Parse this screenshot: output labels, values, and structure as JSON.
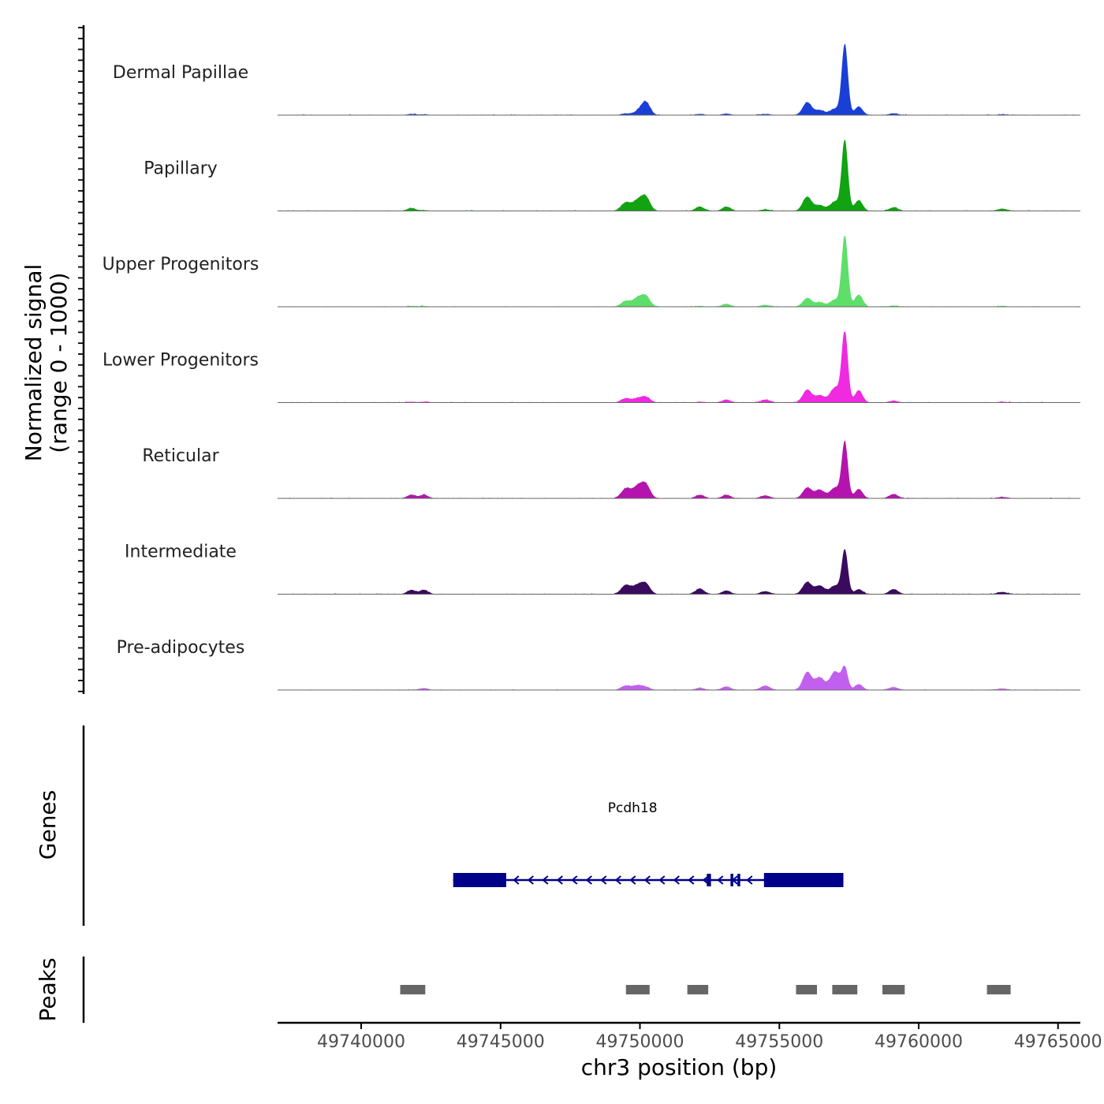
{
  "chart_data": {
    "type": "area",
    "title": "",
    "chromosome": "chr3",
    "xlabel": "chr3 position (bp)",
    "ylabel_line1": "Normalized signal",
    "ylabel_line2": "(range 0 - 1000)",
    "xlim": [
      49737000,
      49765800
    ],
    "xticks": [
      49740000,
      49745000,
      49750000,
      49755000,
      49760000,
      49765000
    ],
    "xtick_labels": [
      "49740000",
      "49745000",
      "49750000",
      "49755000",
      "49760000",
      "49765000"
    ],
    "ylim": [
      0,
      1000
    ],
    "peak_centers": [
      {
        "pos": 49741800,
        "w": 150
      },
      {
        "pos": 49742250,
        "w": 150
      },
      {
        "pos": 49749500,
        "w": 170
      },
      {
        "pos": 49749900,
        "w": 160
      },
      {
        "pos": 49750200,
        "w": 160
      },
      {
        "pos": 49752150,
        "w": 150
      },
      {
        "pos": 49753100,
        "w": 150
      },
      {
        "pos": 49754500,
        "w": 170
      },
      {
        "pos": 49756000,
        "w": 160
      },
      {
        "pos": 49756450,
        "w": 170
      },
      {
        "pos": 49757000,
        "w": 180
      },
      {
        "pos": 49757350,
        "w": 110
      },
      {
        "pos": 49757850,
        "w": 140
      },
      {
        "pos": 49759100,
        "w": 160
      },
      {
        "pos": 49763000,
        "w": 180
      }
    ],
    "series": [
      {
        "name": "Dermal Papillae",
        "color": "#1a3fd6",
        "peak_heights": [
          15,
          10,
          20,
          40,
          190,
          15,
          20,
          15,
          180,
          70,
          90,
          1000,
          120,
          25,
          10
        ]
      },
      {
        "name": "Papillary",
        "color": "#12a312",
        "peak_heights": [
          40,
          10,
          120,
          130,
          200,
          60,
          60,
          20,
          200,
          80,
          130,
          1000,
          150,
          50,
          30
        ]
      },
      {
        "name": "Upper Progenitors",
        "color": "#5ddf6a",
        "peak_heights": [
          10,
          10,
          80,
          110,
          150,
          10,
          40,
          25,
          120,
          60,
          100,
          1000,
          170,
          15,
          10
        ]
      },
      {
        "name": "Lower Progenitors",
        "color": "#ef2ae0",
        "peak_heights": [
          10,
          10,
          60,
          50,
          80,
          10,
          40,
          40,
          180,
          100,
          210,
          1000,
          170,
          25,
          10
        ]
      },
      {
        "name": "Reticular",
        "color": "#b414ad",
        "peak_heights": [
          50,
          50,
          140,
          150,
          200,
          50,
          50,
          40,
          150,
          120,
          150,
          790,
          130,
          60,
          20
        ]
      },
      {
        "name": "Intermediate",
        "color": "#3a0a5f",
        "peak_heights": [
          60,
          60,
          130,
          110,
          150,
          80,
          50,
          40,
          170,
          120,
          120,
          620,
          70,
          70,
          30
        ]
      },
      {
        "name": "Pre-adipocytes",
        "color": "#c160ef",
        "peak_heights": [
          5,
          25,
          60,
          60,
          40,
          30,
          50,
          60,
          250,
          170,
          260,
          300,
          80,
          40,
          20
        ]
      }
    ],
    "genes": [
      {
        "name": "Pcdh18",
        "strand": "-",
        "start": 49743300,
        "end": 49757300,
        "exons": [
          [
            49743300,
            49745200
          ],
          [
            49752400,
            49752550
          ],
          [
            49753250,
            49753350
          ],
          [
            49753500,
            49753600
          ],
          [
            49754450,
            49757300
          ]
        ]
      }
    ],
    "gene_track_title": "Genes",
    "peak_track_title": "Peaks",
    "peaks": [
      [
        49741400,
        49742300
      ],
      [
        49749500,
        49750350
      ],
      [
        49751700,
        49752450
      ],
      [
        49755600,
        49756350
      ],
      [
        49756900,
        49757800
      ],
      [
        49758700,
        49759500
      ],
      [
        49762450,
        49763300
      ]
    ],
    "peak_color": "#666666",
    "gene_color": "#00008b"
  }
}
